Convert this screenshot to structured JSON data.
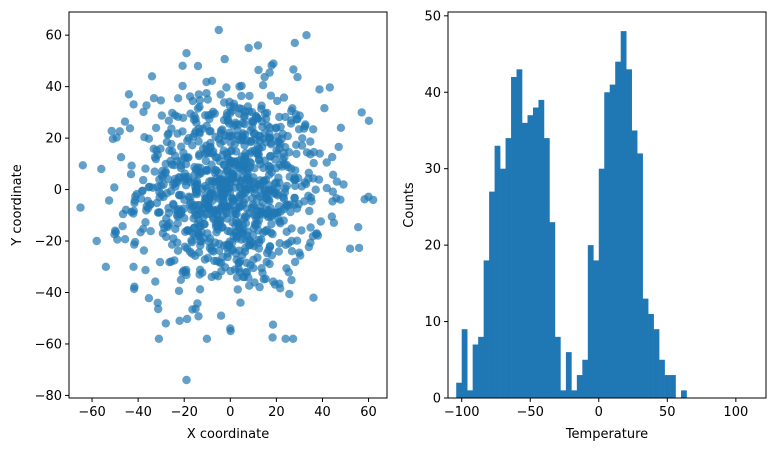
{
  "chart_data": [
    {
      "type": "scatter",
      "title": "",
      "xlabel": "X coordinate",
      "ylabel": "Y coordinate",
      "xlim": [
        -70,
        68
      ],
      "ylim": [
        -81,
        69
      ],
      "xticks": [
        -60,
        -40,
        -20,
        0,
        20,
        40,
        60
      ],
      "yticks": [
        -80,
        -60,
        -40,
        -20,
        0,
        20,
        40,
        60
      ],
      "color": "#1f77b4",
      "alpha": 0.7,
      "grid": false,
      "n_points": 1000,
      "distribution": "bivariate normal, mean (0, 0), sd approx 20 on both axes",
      "notable_points": [
        [
          -65,
          -7
        ],
        [
          -58,
          -20
        ],
        [
          -56,
          8
        ],
        [
          -54,
          -30
        ],
        [
          62,
          -4
        ],
        [
          57,
          30
        ],
        [
          -19,
          -74
        ],
        [
          -5,
          62
        ],
        [
          8,
          55
        ],
        [
          12,
          56
        ],
        [
          28,
          57
        ],
        [
          -14,
          48
        ],
        [
          -19,
          53
        ],
        [
          -34,
          44
        ],
        [
          -44,
          37
        ],
        [
          24,
          -58
        ],
        [
          0,
          -54
        ],
        [
          -28,
          -52
        ],
        [
          -22,
          -51
        ],
        [
          52,
          -23
        ],
        [
          -50,
          -16
        ],
        [
          -42,
          -30
        ],
        [
          48,
          24
        ],
        [
          -4,
          -49
        ]
      ]
    },
    {
      "type": "bar",
      "subtype": "histogram",
      "title": "",
      "xlabel": "Temperature",
      "ylabel": "Counts",
      "xlim": [
        -110,
        122
      ],
      "ylim": [
        0,
        50.5
      ],
      "xticks": [
        -100,
        -50,
        0,
        50,
        100
      ],
      "yticks": [
        0,
        10,
        20,
        30,
        40,
        50
      ],
      "color": "#1f77b4",
      "grid": false,
      "bin_start": -104,
      "bin_width": 4,
      "counts": [
        2,
        9,
        1,
        7,
        8,
        18,
        27,
        33,
        30,
        34,
        42,
        43,
        36,
        37,
        38,
        39,
        34,
        23,
        8,
        1,
        6,
        1,
        3,
        5,
        20,
        18,
        30,
        40,
        41,
        44,
        48,
        43,
        35,
        32,
        13,
        11,
        9,
        5,
        3,
        3,
        0,
        1
      ]
    }
  ]
}
